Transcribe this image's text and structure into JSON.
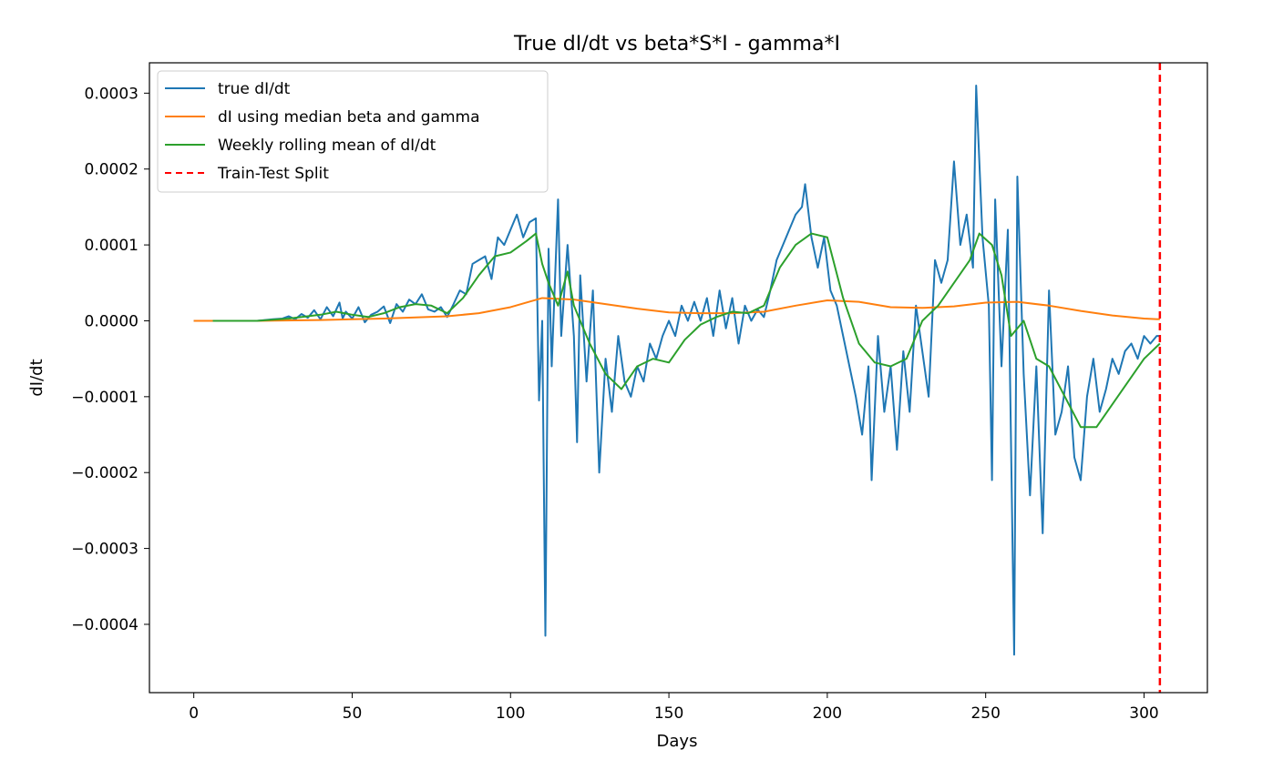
{
  "chart_data": {
    "type": "line",
    "title": "True dI/dt vs beta*S*I - gamma*I",
    "xlabel": "Days",
    "ylabel": "dI/dt",
    "xlim": [
      -14,
      320
    ],
    "ylim": [
      -0.00049,
      0.00034
    ],
    "xticks": [
      0,
      50,
      100,
      150,
      200,
      250,
      300
    ],
    "xtick_labels": [
      "0",
      "50",
      "100",
      "150",
      "200",
      "250",
      "300"
    ],
    "yticks": [
      -0.0004,
      -0.0003,
      -0.0002,
      -0.0001,
      0.0,
      0.0001,
      0.0002,
      0.0003
    ],
    "ytick_labels": [
      "−0.0004",
      "−0.0003",
      "−0.0002",
      "−0.0001",
      "0.0000",
      "0.0001",
      "0.0002",
      "0.0003"
    ],
    "grid": false,
    "legend_position": "top-left",
    "split_x": 305,
    "split_color": "#ff0000",
    "series": [
      {
        "name": "true dI/dt",
        "color": "#1f77b4",
        "style": "solid",
        "points": [
          [
            0,
            0
          ],
          [
            5,
            0
          ],
          [
            10,
            0
          ],
          [
            15,
            0
          ],
          [
            20,
            0
          ],
          [
            25,
            2e-06
          ],
          [
            28,
            3e-06
          ],
          [
            30,
            6e-06
          ],
          [
            32,
            2e-06
          ],
          [
            34,
            9e-06
          ],
          [
            36,
            4e-06
          ],
          [
            38,
            1.4e-05
          ],
          [
            40,
            2e-06
          ],
          [
            42,
            1.8e-05
          ],
          [
            44,
            6e-06
          ],
          [
            46,
            2.4e-05
          ],
          [
            47,
            3e-06
          ],
          [
            48,
            1.2e-05
          ],
          [
            50,
            3e-06
          ],
          [
            52,
            1.8e-05
          ],
          [
            54,
            -2e-06
          ],
          [
            56,
            8e-06
          ],
          [
            58,
            1.2e-05
          ],
          [
            60,
            1.9e-05
          ],
          [
            62,
            -3e-06
          ],
          [
            64,
            2.2e-05
          ],
          [
            66,
            1.2e-05
          ],
          [
            68,
            2.8e-05
          ],
          [
            70,
            2.2e-05
          ],
          [
            72,
            3.5e-05
          ],
          [
            74,
            1.5e-05
          ],
          [
            76,
            1.2e-05
          ],
          [
            78,
            1.8e-05
          ],
          [
            80,
            5e-06
          ],
          [
            82,
            2.2e-05
          ],
          [
            84,
            4e-05
          ],
          [
            86,
            3.5e-05
          ],
          [
            88,
            7.5e-05
          ],
          [
            90,
            8e-05
          ],
          [
            92,
            8.5e-05
          ],
          [
            94,
            5.5e-05
          ],
          [
            96,
            0.00011
          ],
          [
            98,
            0.0001
          ],
          [
            100,
            0.00012
          ],
          [
            102,
            0.00014
          ],
          [
            104,
            0.00011
          ],
          [
            106,
            0.00013
          ],
          [
            108,
            0.000135
          ],
          [
            109,
            -0.000105
          ],
          [
            110,
            0.0
          ],
          [
            111,
            -0.000415
          ],
          [
            112,
            9.5e-05
          ],
          [
            113,
            -6e-05
          ],
          [
            115,
            0.00016
          ],
          [
            116,
            -2e-05
          ],
          [
            118,
            0.0001
          ],
          [
            120,
            -2e-05
          ],
          [
            121,
            -0.00016
          ],
          [
            122,
            6e-05
          ],
          [
            124,
            -8e-05
          ],
          [
            126,
            4e-05
          ],
          [
            128,
            -0.0002
          ],
          [
            130,
            -5e-05
          ],
          [
            132,
            -0.00012
          ],
          [
            134,
            -2e-05
          ],
          [
            136,
            -8e-05
          ],
          [
            138,
            -0.0001
          ],
          [
            140,
            -6e-05
          ],
          [
            142,
            -8e-05
          ],
          [
            144,
            -3e-05
          ],
          [
            146,
            -5e-05
          ],
          [
            148,
            -2e-05
          ],
          [
            150,
            0.0
          ],
          [
            152,
            -2e-05
          ],
          [
            154,
            2e-05
          ],
          [
            156,
            0.0
          ],
          [
            158,
            2.5e-05
          ],
          [
            160,
            0.0
          ],
          [
            162,
            3e-05
          ],
          [
            164,
            -2e-05
          ],
          [
            166,
            4e-05
          ],
          [
            168,
            -1e-05
          ],
          [
            170,
            3e-05
          ],
          [
            172,
            -3e-05
          ],
          [
            174,
            2e-05
          ],
          [
            176,
            0.0
          ],
          [
            178,
            1.5e-05
          ],
          [
            180,
            5e-06
          ],
          [
            182,
            4e-05
          ],
          [
            184,
            8e-05
          ],
          [
            186,
            0.0001
          ],
          [
            188,
            0.00012
          ],
          [
            190,
            0.00014
          ],
          [
            192,
            0.00015
          ],
          [
            193,
            0.00018
          ],
          [
            195,
            0.00011
          ],
          [
            197,
            7e-05
          ],
          [
            199,
            0.00011
          ],
          [
            201,
            4e-05
          ],
          [
            203,
            2e-05
          ],
          [
            205,
            -2e-05
          ],
          [
            207,
            -6e-05
          ],
          [
            209,
            -0.0001
          ],
          [
            211,
            -0.00015
          ],
          [
            213,
            -6e-05
          ],
          [
            214,
            -0.00021
          ],
          [
            216,
            -2e-05
          ],
          [
            218,
            -0.00012
          ],
          [
            220,
            -6e-05
          ],
          [
            222,
            -0.00017
          ],
          [
            224,
            -4e-05
          ],
          [
            226,
            -0.00012
          ],
          [
            228,
            2e-05
          ],
          [
            230,
            -4e-05
          ],
          [
            232,
            -0.0001
          ],
          [
            234,
            8e-05
          ],
          [
            236,
            5e-05
          ],
          [
            238,
            8e-05
          ],
          [
            240,
            0.00021
          ],
          [
            242,
            0.0001
          ],
          [
            244,
            0.00014
          ],
          [
            246,
            7e-05
          ],
          [
            247,
            0.00031
          ],
          [
            249,
            0.00011
          ],
          [
            251,
            2e-05
          ],
          [
            252,
            -0.00021
          ],
          [
            253,
            0.00016
          ],
          [
            255,
            -6e-05
          ],
          [
            257,
            0.00012
          ],
          [
            259,
            -0.00044
          ],
          [
            260,
            0.00019
          ],
          [
            262,
            -7e-05
          ],
          [
            264,
            -0.00023
          ],
          [
            266,
            -6e-05
          ],
          [
            268,
            -0.00028
          ],
          [
            270,
            4e-05
          ],
          [
            272,
            -0.00015
          ],
          [
            274,
            -0.00012
          ],
          [
            276,
            -6e-05
          ],
          [
            278,
            -0.00018
          ],
          [
            280,
            -0.00021
          ],
          [
            282,
            -0.0001
          ],
          [
            284,
            -5e-05
          ],
          [
            286,
            -0.00012
          ],
          [
            288,
            -9e-05
          ],
          [
            290,
            -5e-05
          ],
          [
            292,
            -7e-05
          ],
          [
            294,
            -4e-05
          ],
          [
            296,
            -3e-05
          ],
          [
            298,
            -5e-05
          ],
          [
            300,
            -2e-05
          ],
          [
            302,
            -3e-05
          ],
          [
            304,
            -2e-05
          ],
          [
            305,
            -2e-05
          ]
        ]
      },
      {
        "name": "dI using median beta and gamma",
        "color": "#ff7f0e",
        "style": "solid",
        "points": [
          [
            0,
            0
          ],
          [
            20,
            0
          ],
          [
            40,
            1e-06
          ],
          [
            60,
            3e-06
          ],
          [
            80,
            6e-06
          ],
          [
            90,
            1e-05
          ],
          [
            100,
            1.8e-05
          ],
          [
            110,
            3e-05
          ],
          [
            120,
            2.8e-05
          ],
          [
            130,
            2.2e-05
          ],
          [
            140,
            1.6e-05
          ],
          [
            150,
            1.1e-05
          ],
          [
            160,
            1e-05
          ],
          [
            170,
            1e-05
          ],
          [
            180,
            1.2e-05
          ],
          [
            190,
            2e-05
          ],
          [
            200,
            2.7e-05
          ],
          [
            210,
            2.5e-05
          ],
          [
            220,
            1.8e-05
          ],
          [
            230,
            1.7e-05
          ],
          [
            240,
            1.9e-05
          ],
          [
            250,
            2.4e-05
          ],
          [
            260,
            2.5e-05
          ],
          [
            270,
            2e-05
          ],
          [
            280,
            1.3e-05
          ],
          [
            290,
            7e-06
          ],
          [
            300,
            3e-06
          ],
          [
            305,
            2e-06
          ]
        ]
      },
      {
        "name": "Weekly rolling mean of dI/dt",
        "color": "#2ca02c",
        "style": "solid",
        "points": [
          [
            6,
            0
          ],
          [
            20,
            0
          ],
          [
            30,
            3e-06
          ],
          [
            40,
            8e-06
          ],
          [
            45,
            1.2e-05
          ],
          [
            50,
            8e-06
          ],
          [
            55,
            5e-06
          ],
          [
            60,
            1e-05
          ],
          [
            65,
            1.8e-05
          ],
          [
            70,
            2.2e-05
          ],
          [
            75,
            2e-05
          ],
          [
            80,
            1e-05
          ],
          [
            85,
            3e-05
          ],
          [
            90,
            6e-05
          ],
          [
            95,
            8.5e-05
          ],
          [
            100,
            9e-05
          ],
          [
            105,
            0.000105
          ],
          [
            108,
            0.000115
          ],
          [
            110,
            7.5e-05
          ],
          [
            112,
            5e-05
          ],
          [
            115,
            2e-05
          ],
          [
            118,
            6.5e-05
          ],
          [
            120,
            2e-05
          ],
          [
            125,
            -3e-05
          ],
          [
            130,
            -7e-05
          ],
          [
            135,
            -9e-05
          ],
          [
            140,
            -6e-05
          ],
          [
            145,
            -5e-05
          ],
          [
            150,
            -5.5e-05
          ],
          [
            155,
            -2.5e-05
          ],
          [
            160,
            -5e-06
          ],
          [
            165,
            5e-06
          ],
          [
            170,
            1.2e-05
          ],
          [
            175,
            1e-05
          ],
          [
            180,
            2e-05
          ],
          [
            185,
            7e-05
          ],
          [
            190,
            0.0001
          ],
          [
            195,
            0.000115
          ],
          [
            200,
            0.00011
          ],
          [
            205,
            3e-05
          ],
          [
            210,
            -3e-05
          ],
          [
            215,
            -5.5e-05
          ],
          [
            220,
            -6e-05
          ],
          [
            225,
            -5e-05
          ],
          [
            230,
            0.0
          ],
          [
            235,
            2e-05
          ],
          [
            240,
            5e-05
          ],
          [
            245,
            8e-05
          ],
          [
            248,
            0.000115
          ],
          [
            252,
            0.0001
          ],
          [
            255,
            6e-05
          ],
          [
            258,
            -2e-05
          ],
          [
            262,
            0.0
          ],
          [
            266,
            -5e-05
          ],
          [
            270,
            -6e-05
          ],
          [
            275,
            -0.0001
          ],
          [
            280,
            -0.00014
          ],
          [
            285,
            -0.00014
          ],
          [
            290,
            -0.00011
          ],
          [
            295,
            -8e-05
          ],
          [
            300,
            -5e-05
          ],
          [
            305,
            -3e-05
          ]
        ]
      },
      {
        "name": "Train-Test Split",
        "color": "#ff0000",
        "style": "dashed",
        "points": []
      }
    ]
  }
}
